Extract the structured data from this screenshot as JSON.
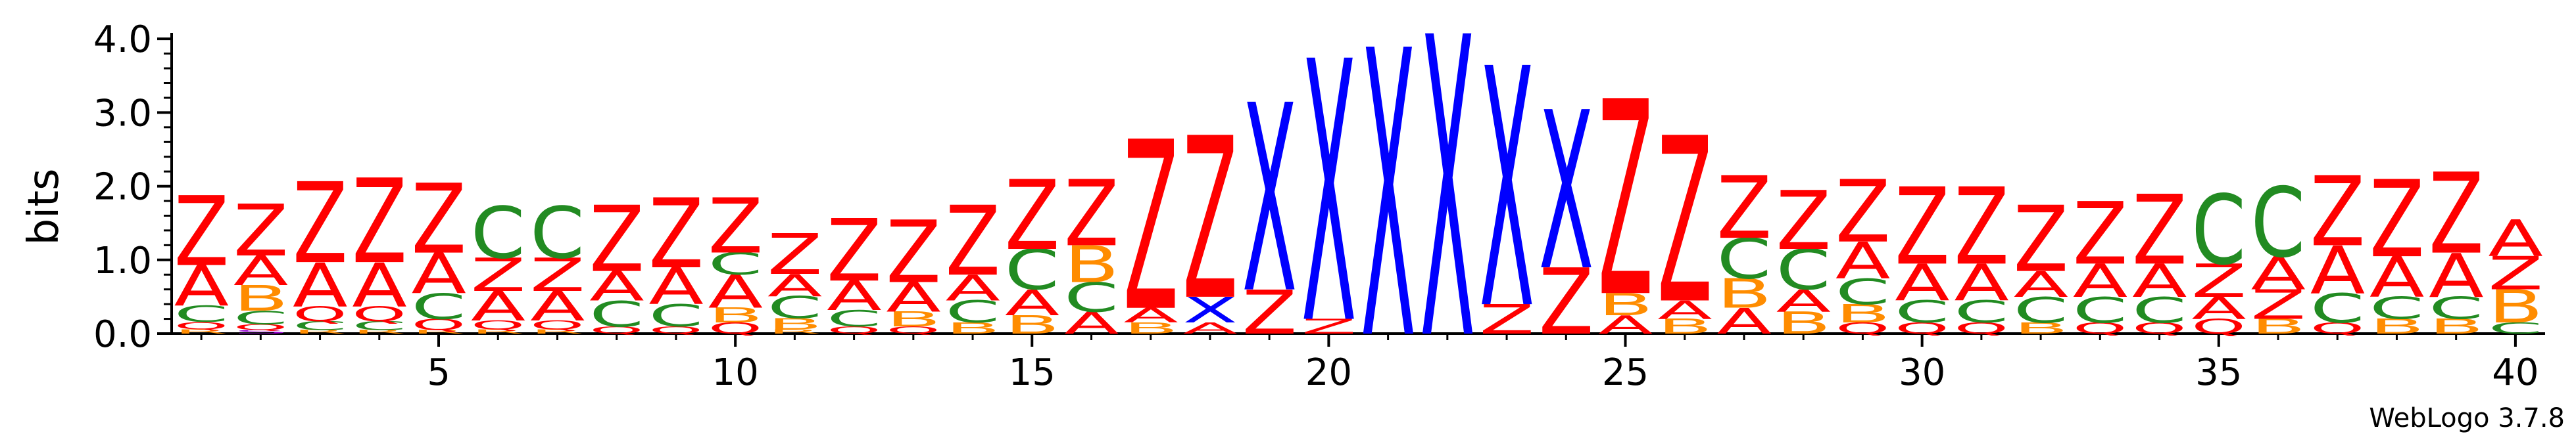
{
  "chart_data": {
    "type": "sequence-logo",
    "title": "",
    "xlabel": "",
    "ylabel": "bits",
    "ylim": [
      0,
      4.0
    ],
    "yticks": [
      "0.0",
      "1.0",
      "2.0",
      "3.0",
      "4.0"
    ],
    "xticks": [
      "5",
      "10",
      "15",
      "20",
      "25",
      "30",
      "35",
      "40"
    ],
    "credit": "WebLogo 3.7.8",
    "colors": {
      "Z": "#ff0000",
      "A": "#ff0000",
      "X": "#0000ff",
      "C": "#228b22",
      "B": "#ff8c00",
      "Q": "#ff0000",
      "R": "#ff8c00",
      "S": "#9400d3"
    },
    "positions": [
      {
        "pos": 1,
        "stack": [
          [
            "R",
            0.06
          ],
          [
            "Q",
            0.1
          ],
          [
            "C",
            0.22
          ],
          [
            "A",
            0.55
          ],
          [
            "Z",
            0.95
          ]
        ]
      },
      {
        "pos": 2,
        "stack": [
          [
            "S",
            0.05
          ],
          [
            "Q",
            0.08
          ],
          [
            "C",
            0.18
          ],
          [
            "B",
            0.35
          ],
          [
            "A",
            0.4
          ],
          [
            "Z",
            0.7
          ]
        ]
      },
      {
        "pos": 3,
        "stack": [
          [
            "R",
            0.05
          ],
          [
            "C",
            0.12
          ],
          [
            "Q",
            0.2
          ],
          [
            "A",
            0.6
          ],
          [
            "Z",
            1.1
          ]
        ]
      },
      {
        "pos": 4,
        "stack": [
          [
            "R",
            0.05
          ],
          [
            "C",
            0.12
          ],
          [
            "Q",
            0.2
          ],
          [
            "A",
            0.6
          ],
          [
            "Z",
            1.15
          ]
        ]
      },
      {
        "pos": 5,
        "stack": [
          [
            "R",
            0.05
          ],
          [
            "Q",
            0.15
          ],
          [
            "C",
            0.35
          ],
          [
            "A",
            0.55
          ],
          [
            "Z",
            0.95
          ]
        ]
      },
      {
        "pos": 6,
        "stack": [
          [
            "R",
            0.06
          ],
          [
            "Q",
            0.12
          ],
          [
            "A",
            0.4
          ],
          [
            "Z",
            0.45
          ],
          [
            "C",
            0.7
          ]
        ]
      },
      {
        "pos": 7,
        "stack": [
          [
            "R",
            0.06
          ],
          [
            "Q",
            0.12
          ],
          [
            "A",
            0.4
          ],
          [
            "Z",
            0.45
          ],
          [
            "C",
            0.7
          ]
        ]
      },
      {
        "pos": 8,
        "stack": [
          [
            "Q",
            0.1
          ],
          [
            "C",
            0.35
          ],
          [
            "A",
            0.4
          ],
          [
            "Z",
            0.9
          ]
        ]
      },
      {
        "pos": 9,
        "stack": [
          [
            "Q",
            0.1
          ],
          [
            "C",
            0.3
          ],
          [
            "A",
            0.5
          ],
          [
            "Z",
            0.95
          ]
        ]
      },
      {
        "pos": 10,
        "stack": [
          [
            "Q",
            0.15
          ],
          [
            "B",
            0.2
          ],
          [
            "A",
            0.45
          ],
          [
            "C",
            0.3
          ],
          [
            "Z",
            0.75
          ]
        ]
      },
      {
        "pos": 11,
        "stack": [
          [
            "R",
            0.06
          ],
          [
            "B",
            0.15
          ],
          [
            "C",
            0.3
          ],
          [
            "A",
            0.3
          ],
          [
            "Z",
            0.55
          ]
        ]
      },
      {
        "pos": 12,
        "stack": [
          [
            "Q",
            0.1
          ],
          [
            "C",
            0.22
          ],
          [
            "A",
            0.4
          ],
          [
            "Z",
            0.85
          ]
        ]
      },
      {
        "pos": 13,
        "stack": [
          [
            "Q",
            0.1
          ],
          [
            "B",
            0.2
          ],
          [
            "A",
            0.4
          ],
          [
            "Z",
            0.85
          ]
        ]
      },
      {
        "pos": 14,
        "stack": [
          [
            "B",
            0.15
          ],
          [
            "C",
            0.3
          ],
          [
            "A",
            0.35
          ],
          [
            "Z",
            0.95
          ]
        ]
      },
      {
        "pos": 15,
        "stack": [
          [
            "B",
            0.25
          ],
          [
            "A",
            0.35
          ],
          [
            "C",
            0.55
          ],
          [
            "Z",
            0.95
          ]
        ]
      },
      {
        "pos": 16,
        "stack": [
          [
            "A",
            0.3
          ],
          [
            "C",
            0.4
          ],
          [
            "B",
            0.5
          ],
          [
            "Z",
            0.9
          ]
        ]
      },
      {
        "pos": 17,
        "stack": [
          [
            "B",
            0.15
          ],
          [
            "A",
            0.2
          ],
          [
            "Z",
            2.3
          ]
        ]
      },
      {
        "pos": 18,
        "stack": [
          [
            "A",
            0.15
          ],
          [
            "X",
            0.35
          ],
          [
            "Z",
            2.2
          ]
        ]
      },
      {
        "pos": 19,
        "stack": [
          [
            "Z",
            0.6
          ],
          [
            "X",
            2.55
          ]
        ]
      },
      {
        "pos": 20,
        "stack": [
          [
            "Z",
            0.2
          ],
          [
            "X",
            3.55
          ]
        ]
      },
      {
        "pos": 21,
        "stack": [
          [
            "X",
            3.9
          ]
        ]
      },
      {
        "pos": 22,
        "stack": [
          [
            "X",
            4.08
          ]
        ]
      },
      {
        "pos": 23,
        "stack": [
          [
            "Z",
            0.4
          ],
          [
            "X",
            3.25
          ]
        ]
      },
      {
        "pos": 24,
        "stack": [
          [
            "Z",
            0.9
          ],
          [
            "X",
            2.15
          ]
        ]
      },
      {
        "pos": 25,
        "stack": [
          [
            "A",
            0.25
          ],
          [
            "B",
            0.3
          ],
          [
            "Z",
            2.65
          ]
        ]
      },
      {
        "pos": 26,
        "stack": [
          [
            "B",
            0.2
          ],
          [
            "A",
            0.25
          ],
          [
            "Z",
            2.25
          ]
        ]
      },
      {
        "pos": 27,
        "stack": [
          [
            "A",
            0.35
          ],
          [
            "B",
            0.4
          ],
          [
            "C",
            0.55
          ],
          [
            "Z",
            0.85
          ]
        ]
      },
      {
        "pos": 28,
        "stack": [
          [
            "B",
            0.3
          ],
          [
            "A",
            0.3
          ],
          [
            "C",
            0.55
          ],
          [
            "Z",
            0.8
          ]
        ]
      },
      {
        "pos": 29,
        "stack": [
          [
            "Q",
            0.15
          ],
          [
            "B",
            0.25
          ],
          [
            "C",
            0.35
          ],
          [
            "A",
            0.5
          ],
          [
            "Z",
            0.85
          ]
        ]
      },
      {
        "pos": 30,
        "stack": [
          [
            "Q",
            0.15
          ],
          [
            "C",
            0.3
          ],
          [
            "A",
            0.5
          ],
          [
            "Z",
            1.05
          ]
        ]
      },
      {
        "pos": 31,
        "stack": [
          [
            "Q",
            0.15
          ],
          [
            "C",
            0.3
          ],
          [
            "A",
            0.5
          ],
          [
            "Z",
            1.05
          ]
        ]
      },
      {
        "pos": 32,
        "stack": [
          [
            "B",
            0.15
          ],
          [
            "C",
            0.35
          ],
          [
            "A",
            0.35
          ],
          [
            "Z",
            0.9
          ]
        ]
      },
      {
        "pos": 33,
        "stack": [
          [
            "Q",
            0.15
          ],
          [
            "C",
            0.35
          ],
          [
            "A",
            0.45
          ],
          [
            "Z",
            0.85
          ]
        ]
      },
      {
        "pos": 34,
        "stack": [
          [
            "Q",
            0.15
          ],
          [
            "C",
            0.35
          ],
          [
            "A",
            0.45
          ],
          [
            "Z",
            0.95
          ]
        ]
      },
      {
        "pos": 35,
        "stack": [
          [
            "Q",
            0.2
          ],
          [
            "A",
            0.3
          ],
          [
            "Z",
            0.45
          ],
          [
            "C",
            0.95
          ]
        ]
      },
      {
        "pos": 36,
        "stack": [
          [
            "B",
            0.2
          ],
          [
            "Z",
            0.4
          ],
          [
            "A",
            0.45
          ],
          [
            "C",
            0.95
          ]
        ]
      },
      {
        "pos": 37,
        "stack": [
          [
            "Q",
            0.15
          ],
          [
            "C",
            0.4
          ],
          [
            "A",
            0.65
          ],
          [
            "Z",
            0.95
          ]
        ]
      },
      {
        "pos": 38,
        "stack": [
          [
            "B",
            0.2
          ],
          [
            "C",
            0.3
          ],
          [
            "A",
            0.55
          ],
          [
            "Z",
            1.05
          ]
        ]
      },
      {
        "pos": 39,
        "stack": [
          [
            "B",
            0.2
          ],
          [
            "C",
            0.3
          ],
          [
            "A",
            0.6
          ],
          [
            "Z",
            1.1
          ]
        ]
      },
      {
        "pos": 40,
        "stack": [
          [
            "C",
            0.15
          ],
          [
            "B",
            0.45
          ],
          [
            "Z",
            0.45
          ],
          [
            "A",
            0.5
          ]
        ]
      }
    ]
  }
}
